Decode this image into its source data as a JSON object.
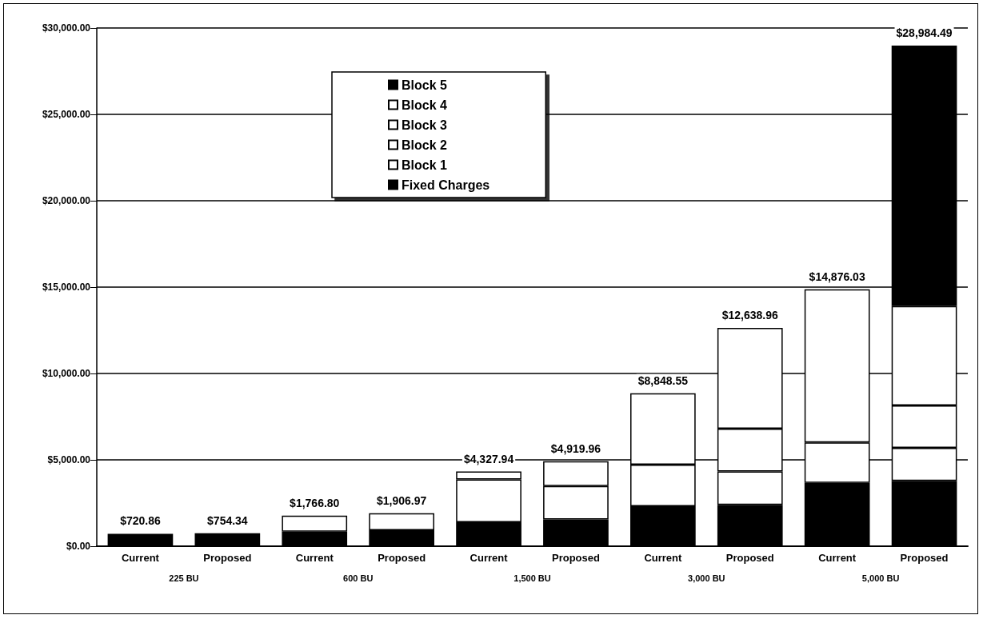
{
  "chart_data": {
    "type": "bar",
    "stacked": true,
    "categories": [
      "Current",
      "Proposed",
      "Current",
      "Proposed",
      "Current",
      "Proposed",
      "Current",
      "Proposed",
      "Current",
      "Proposed"
    ],
    "series": [
      {
        "name": "Fixed Charges",
        "color": "#000000",
        "values": [
          720.86,
          754.34,
          850,
          930,
          1390,
          1550,
          2320,
          2400,
          3670,
          3780
        ]
      },
      {
        "name": "Block 1",
        "color": "#ffffff",
        "values": [
          null,
          null,
          916.8,
          976.97,
          2480,
          1930,
          2400,
          1930,
          2340,
          1920
        ]
      },
      {
        "name": "Block 2",
        "color": "#ffffff",
        "values": [
          null,
          null,
          null,
          null,
          457.94,
          1439.96,
          4128.55,
          2480,
          8866.03,
          2450
        ]
      },
      {
        "name": "Block 3",
        "color": "#ffffff",
        "values": [
          null,
          null,
          null,
          null,
          null,
          null,
          null,
          5828.96,
          null,
          5750
        ]
      },
      {
        "name": "Block 4",
        "color": "#ffffff",
        "values": [
          null,
          null,
          null,
          null,
          null,
          null,
          null,
          null,
          null,
          null
        ]
      },
      {
        "name": "Block 5",
        "color": "#000000",
        "values": [
          null,
          null,
          null,
          null,
          null,
          null,
          null,
          null,
          null,
          15084.49
        ]
      }
    ],
    "totals": [
      "$720.86",
      "$754.34",
      "$1,766.80",
      "$1,906.97",
      "$4,327.94",
      "$4,919.96",
      "$8,848.55",
      "$12,638.96",
      "$14,876.03",
      "$28,984.49"
    ],
    "annotations": [
      "225 BU",
      "600 BU",
      "1,500 BU",
      "3,000 BU",
      "5,000 BU"
    ],
    "ylim": [
      0,
      30000
    ],
    "yticks": [
      {
        "value": 0,
        "label": "$0.00"
      },
      {
        "value": 5000,
        "label": "$5,000.00"
      },
      {
        "value": 10000,
        "label": "$10,000.00"
      },
      {
        "value": 15000,
        "label": "$15,000.00"
      },
      {
        "value": 20000,
        "label": "$20,000.00"
      },
      {
        "value": 25000,
        "label": "$25,000.00"
      },
      {
        "value": 30000,
        "label": "$30,000.00"
      }
    ],
    "grid": "y",
    "legend": "top"
  }
}
